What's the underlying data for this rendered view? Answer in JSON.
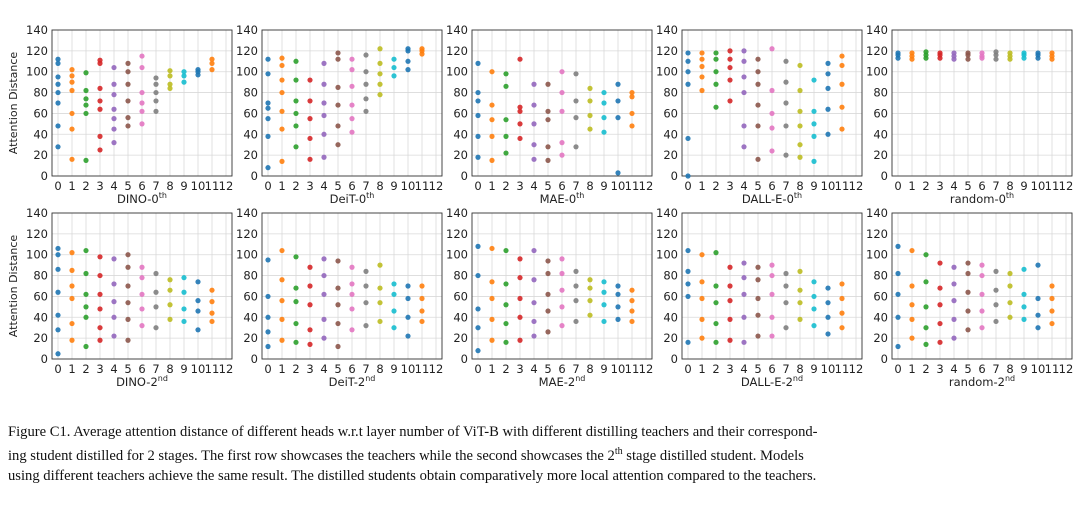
{
  "chart_data": {
    "type": "scatter",
    "ylabel": "Attention Distance",
    "xticks": [
      "0",
      "1",
      "2",
      "3",
      "4",
      "5",
      "6",
      "7",
      "8",
      "9",
      "10",
      "11",
      "12"
    ],
    "yticks": [
      0,
      20,
      40,
      60,
      80,
      100,
      120,
      140
    ],
    "ylim": [
      0,
      140
    ],
    "xlim": [
      0,
      12
    ],
    "grid": true,
    "layer_colors": [
      "#1f77b4",
      "#ff7f0e",
      "#2ca02c",
      "#d62728",
      "#9467bd",
      "#8c564b",
      "#e377c2",
      "#7f7f7f",
      "#bcbd22",
      "#17becf",
      "#1f77b4",
      "#ff7f0e"
    ],
    "panels": [
      {
        "row": 0,
        "col": 0,
        "name": "DINO",
        "sup": "th",
        "title": "DINO-0",
        "layers": [
          [
            28,
            48,
            70,
            80,
            88,
            95,
            108,
            112
          ],
          [
            16,
            45,
            60,
            82,
            90,
            96,
            102
          ],
          [
            15,
            60,
            68,
            74,
            82,
            99
          ],
          [
            25,
            38,
            64,
            72,
            84,
            108,
            111
          ],
          [
            32,
            45,
            55,
            64,
            78,
            88,
            104
          ],
          [
            48,
            56,
            72,
            88,
            100,
            108
          ],
          [
            50,
            62,
            70,
            80,
            104,
            115
          ],
          [
            62,
            72,
            80,
            88,
            94
          ],
          [
            84,
            88,
            96,
            101
          ],
          [
            90,
            96,
            100
          ],
          [
            97,
            100,
            102
          ],
          [
            102,
            108,
            112
          ]
        ]
      },
      {
        "row": 0,
        "col": 1,
        "name": "DeiT",
        "sup": "th",
        "title": "DeiT-0",
        "layers": [
          [
            8,
            38,
            55,
            65,
            70,
            98,
            112
          ],
          [
            14,
            45,
            62,
            80,
            92,
            106,
            113
          ],
          [
            28,
            48,
            60,
            72,
            92,
            110
          ],
          [
            16,
            36,
            55,
            72,
            92
          ],
          [
            18,
            40,
            58,
            70,
            88,
            108
          ],
          [
            30,
            48,
            68,
            85,
            112,
            118
          ],
          [
            42,
            55,
            68,
            86,
            102,
            112
          ],
          [
            62,
            74,
            88,
            100,
            116
          ],
          [
            78,
            88,
            98,
            108,
            122
          ],
          [
            96,
            104,
            112
          ],
          [
            102,
            110,
            120,
            122
          ],
          [
            117,
            120,
            122
          ]
        ]
      },
      {
        "row": 0,
        "col": 2,
        "name": "MAE",
        "sup": "th",
        "title": "MAE-0",
        "layers": [
          [
            18,
            38,
            58,
            72,
            80,
            108
          ],
          [
            15,
            38,
            54,
            68,
            100
          ],
          [
            22,
            38,
            54,
            86,
            98
          ],
          [
            36,
            50,
            62,
            66,
            112
          ],
          [
            16,
            30,
            50,
            68,
            88
          ],
          [
            15,
            28,
            54,
            62,
            88
          ],
          [
            20,
            32,
            62,
            80,
            100
          ],
          [
            28,
            56,
            72,
            98
          ],
          [
            45,
            58,
            72,
            84
          ],
          [
            42,
            56,
            70,
            80
          ],
          [
            3,
            56,
            72,
            88
          ],
          [
            48,
            60,
            76,
            80
          ]
        ]
      },
      {
        "row": 0,
        "col": 3,
        "name": "DALL-E",
        "sup": "th",
        "title": "DALL-E-0",
        "layers": [
          [
            0,
            36,
            88,
            100,
            110,
            118
          ],
          [
            82,
            95,
            105,
            112,
            118
          ],
          [
            66,
            88,
            100,
            112,
            118
          ],
          [
            72,
            92,
            104,
            112,
            120
          ],
          [
            28,
            48,
            80,
            95,
            110,
            120
          ],
          [
            16,
            48,
            68,
            88,
            100,
            112
          ],
          [
            24,
            46,
            60,
            82,
            122
          ],
          [
            20,
            48,
            70,
            90,
            110
          ],
          [
            18,
            30,
            48,
            62,
            82,
            106
          ],
          [
            14,
            38,
            50,
            62,
            92
          ],
          [
            40,
            64,
            84,
            98,
            108
          ],
          [
            45,
            66,
            88,
            106,
            115
          ]
        ]
      },
      {
        "row": 0,
        "col": 4,
        "name": "random",
        "sup": "th",
        "title": "random-0",
        "layers": [
          [
            113,
            116,
            118
          ],
          [
            112,
            115,
            118
          ],
          [
            113,
            116,
            119
          ],
          [
            113,
            116,
            118
          ],
          [
            112,
            115,
            118
          ],
          [
            112,
            116,
            118
          ],
          [
            113,
            115,
            118
          ],
          [
            112,
            116,
            119
          ],
          [
            112,
            115,
            118
          ],
          [
            113,
            116,
            118
          ],
          [
            113,
            116,
            118
          ],
          [
            112,
            115,
            118
          ]
        ]
      },
      {
        "row": 1,
        "col": 0,
        "name": "DINO",
        "sup": "nd",
        "title": "DINO-2",
        "layers": [
          [
            5,
            28,
            42,
            64,
            86,
            100,
            106
          ],
          [
            18,
            34,
            58,
            70,
            85,
            102
          ],
          [
            12,
            40,
            50,
            62,
            82,
            104
          ],
          [
            18,
            30,
            48,
            62,
            80,
            98
          ],
          [
            22,
            40,
            55,
            72,
            96
          ],
          [
            18,
            38,
            54,
            70,
            88,
            100
          ],
          [
            32,
            48,
            62,
            78,
            88
          ],
          [
            30,
            50,
            64,
            82
          ],
          [
            38,
            52,
            66,
            76
          ],
          [
            36,
            48,
            64,
            78
          ],
          [
            28,
            46,
            56,
            74
          ],
          [
            36,
            44,
            55,
            66
          ]
        ]
      },
      {
        "row": 1,
        "col": 1,
        "name": "DeiT",
        "sup": "nd",
        "title": "DeiT-2",
        "layers": [
          [
            12,
            26,
            40,
            60,
            95
          ],
          [
            18,
            38,
            56,
            76,
            104
          ],
          [
            16,
            34,
            55,
            68,
            98
          ],
          [
            14,
            28,
            52,
            70,
            88
          ],
          [
            20,
            38,
            62,
            80,
            96
          ],
          [
            12,
            34,
            52,
            68,
            94
          ],
          [
            28,
            48,
            62,
            72,
            88
          ],
          [
            32,
            54,
            70,
            84
          ],
          [
            36,
            54,
            68,
            90
          ],
          [
            30,
            46,
            62,
            72
          ],
          [
            22,
            40,
            58,
            70
          ],
          [
            36,
            46,
            58,
            70
          ]
        ]
      },
      {
        "row": 1,
        "col": 2,
        "name": "MAE",
        "sup": "nd",
        "title": "MAE-2",
        "layers": [
          [
            8,
            30,
            48,
            80,
            108
          ],
          [
            18,
            38,
            58,
            74,
            106
          ],
          [
            16,
            34,
            52,
            72,
            104
          ],
          [
            18,
            40,
            58,
            78,
            96
          ],
          [
            22,
            36,
            54,
            76,
            104
          ],
          [
            26,
            46,
            62,
            82,
            94
          ],
          [
            32,
            50,
            66,
            82,
            96
          ],
          [
            36,
            56,
            70,
            84
          ],
          [
            42,
            56,
            68,
            76
          ],
          [
            36,
            52,
            64,
            74
          ],
          [
            38,
            50,
            62,
            70
          ],
          [
            36,
            46,
            56,
            66
          ]
        ]
      },
      {
        "row": 1,
        "col": 3,
        "name": "DALL-E",
        "sup": "nd",
        "title": "DALL-E-2",
        "layers": [
          [
            16,
            60,
            72,
            84,
            104
          ],
          [
            20,
            38,
            58,
            74,
            100
          ],
          [
            16,
            34,
            54,
            70,
            102
          ],
          [
            18,
            38,
            56,
            70,
            88
          ],
          [
            16,
            40,
            62,
            78,
            92
          ],
          [
            22,
            42,
            58,
            76,
            88
          ],
          [
            22,
            40,
            62,
            80,
            90
          ],
          [
            30,
            54,
            70,
            82
          ],
          [
            38,
            54,
            66,
            84
          ],
          [
            32,
            48,
            60,
            74
          ],
          [
            24,
            40,
            54,
            68
          ],
          [
            30,
            44,
            58,
            72
          ]
        ]
      },
      {
        "row": 1,
        "col": 4,
        "name": "random",
        "sup": "nd",
        "title": "random-2",
        "layers": [
          [
            12,
            40,
            62,
            82,
            108
          ],
          [
            20,
            38,
            52,
            70,
            104
          ],
          [
            14,
            30,
            50,
            74,
            100
          ],
          [
            16,
            34,
            52,
            68,
            92
          ],
          [
            20,
            38,
            56,
            72,
            88
          ],
          [
            28,
            46,
            64,
            82,
            92
          ],
          [
            30,
            46,
            62,
            80,
            90
          ],
          [
            36,
            52,
            66,
            84
          ],
          [
            40,
            54,
            70,
            82
          ],
          [
            38,
            50,
            62,
            86
          ],
          [
            30,
            42,
            58,
            90
          ],
          [
            34,
            46,
            58,
            70
          ]
        ]
      }
    ]
  },
  "caption": {
    "label": "Figure C1.",
    "line1": " Average attention distance of different heads w.r.t layer number of ViT-B with different distilling teachers and their correspond-",
    "line2a": "ing student distilled for 2 stages. The first row showcases the teachers while the second showcases the 2",
    "line2sup": "th",
    "line2b": " stage distilled student. Models",
    "line3": "using different teachers achieve the same result. The distilled students obtain comparatively more local attention compared to the teachers."
  }
}
